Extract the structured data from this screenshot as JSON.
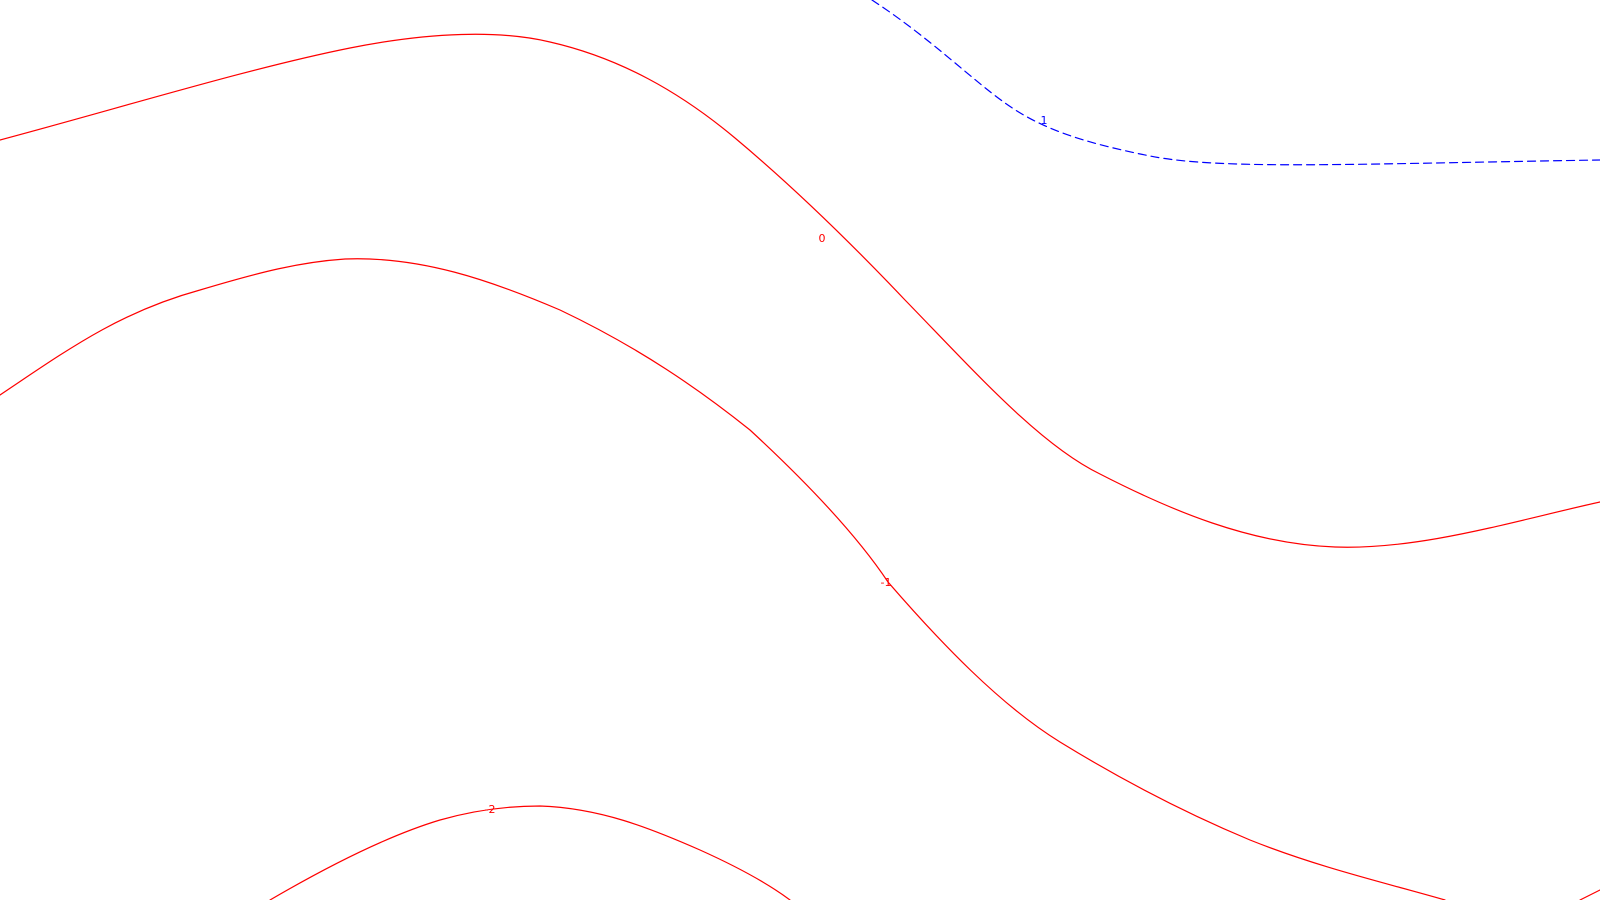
{
  "chart_data": {
    "type": "contour",
    "title": "",
    "xlabel": "",
    "ylabel": "",
    "legend": "none",
    "grid": false,
    "colors": {
      "positive": "#0000ff",
      "nonpositive": "#ff0000",
      "background": "#ffffff"
    },
    "contours": [
      {
        "level": 1,
        "label": "1",
        "style": "dashed",
        "color": "#0000ff"
      },
      {
        "level": 0,
        "label": "0",
        "style": "solid",
        "color": "#ff0000"
      },
      {
        "level": -1,
        "label": "-1",
        "style": "solid",
        "color": "#ff0000"
      },
      {
        "level": -2,
        "label": "-2",
        "style": "solid",
        "color": "#ff0000"
      }
    ]
  }
}
